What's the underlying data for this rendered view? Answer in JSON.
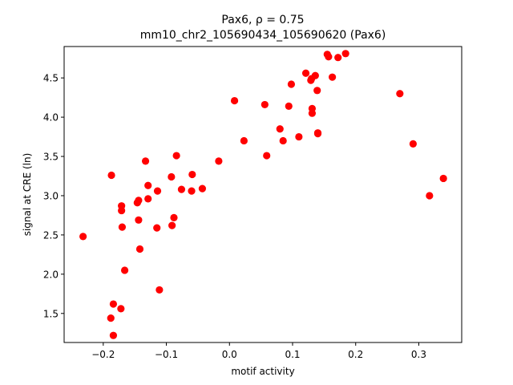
{
  "chart_data": {
    "type": "scatter",
    "title_line1": "Pax6, ρ = 0.75",
    "title_line2": "mm10_chr2_105690434_105690620 (Pax6)",
    "xlabel": "motif activity",
    "ylabel": "signal at CRE (ln)",
    "xlim": [
      -0.262,
      0.368
    ],
    "ylim": [
      1.13,
      4.9
    ],
    "xticks": [
      -0.2,
      -0.1,
      0.0,
      0.1,
      0.2,
      0.3
    ],
    "xtick_labels": [
      "−0.2",
      "−0.1",
      "0.0",
      "0.1",
      "0.2",
      "0.3"
    ],
    "yticks": [
      1.5,
      2.0,
      2.5,
      3.0,
      3.5,
      4.0,
      4.5
    ],
    "ytick_labels": [
      "1.5",
      "2.0",
      "2.5",
      "3.0",
      "3.5",
      "4.0",
      "4.5"
    ],
    "grid": false,
    "marker_color": "#ff0000",
    "points": [
      [
        -0.232,
        2.48
      ],
      [
        -0.187,
        3.26
      ],
      [
        -0.188,
        1.44
      ],
      [
        -0.184,
        1.62
      ],
      [
        -0.184,
        1.22
      ],
      [
        -0.172,
        1.56
      ],
      [
        -0.171,
        2.87
      ],
      [
        -0.171,
        2.81
      ],
      [
        -0.17,
        2.6
      ],
      [
        -0.166,
        2.05
      ],
      [
        -0.146,
        2.91
      ],
      [
        -0.144,
        2.94
      ],
      [
        -0.144,
        2.69
      ],
      [
        -0.142,
        2.32
      ],
      [
        -0.133,
        3.44
      ],
      [
        -0.129,
        3.13
      ],
      [
        -0.129,
        2.96
      ],
      [
        -0.114,
        3.06
      ],
      [
        -0.115,
        2.59
      ],
      [
        -0.111,
        1.8
      ],
      [
        -0.092,
        3.24
      ],
      [
        -0.091,
        2.62
      ],
      [
        -0.088,
        2.72
      ],
      [
        -0.084,
        3.51
      ],
      [
        -0.076,
        3.08
      ],
      [
        -0.059,
        3.27
      ],
      [
        -0.06,
        3.06
      ],
      [
        -0.043,
        3.09
      ],
      [
        -0.017,
        3.44
      ],
      [
        0.008,
        4.21
      ],
      [
        0.023,
        3.7
      ],
      [
        0.056,
        4.16
      ],
      [
        0.059,
        3.51
      ],
      [
        0.08,
        3.85
      ],
      [
        0.085,
        3.7
      ],
      [
        0.094,
        4.14
      ],
      [
        0.098,
        4.42
      ],
      [
        0.11,
        3.75
      ],
      [
        0.121,
        4.56
      ],
      [
        0.129,
        4.47
      ],
      [
        0.13,
        4.49
      ],
      [
        0.131,
        4.11
      ],
      [
        0.131,
        4.05
      ],
      [
        0.136,
        4.53
      ],
      [
        0.139,
        4.34
      ],
      [
        0.14,
        3.8
      ],
      [
        0.14,
        3.79
      ],
      [
        0.155,
        4.8
      ],
      [
        0.157,
        4.77
      ],
      [
        0.163,
        4.51
      ],
      [
        0.172,
        4.76
      ],
      [
        0.184,
        4.81
      ],
      [
        0.27,
        4.3
      ],
      [
        0.291,
        3.66
      ],
      [
        0.317,
        3.0
      ],
      [
        0.339,
        3.22
      ]
    ]
  }
}
